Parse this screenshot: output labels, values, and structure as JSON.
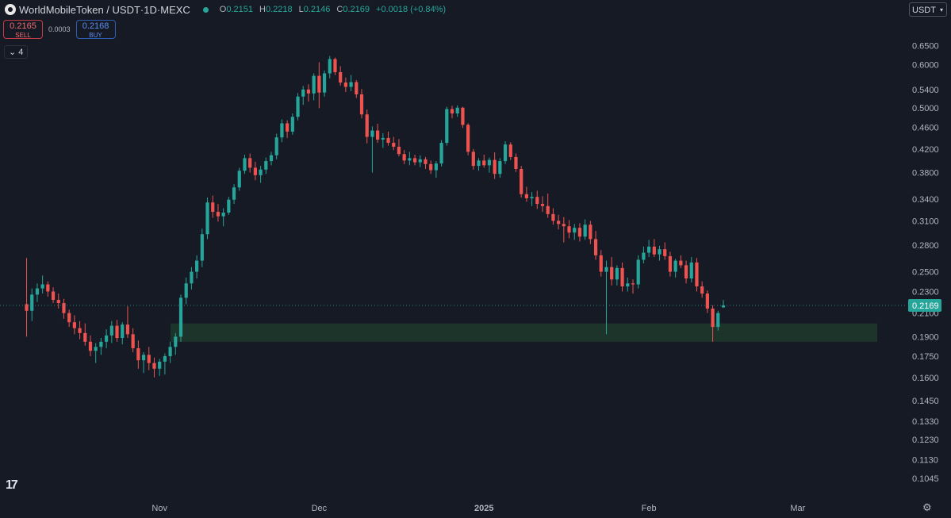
{
  "header": {
    "symbol": "WorldMobileToken / USDT",
    "interval": "1D",
    "exchange": "MEXC",
    "title_sep": " · ",
    "ohlc": {
      "o_label": "O",
      "o": "0.2151",
      "h_label": "H",
      "h": "0.2218",
      "l_label": "L",
      "l": "0.2146",
      "c_label": "C",
      "c": "0.2169",
      "change": "+0.0018 (+0.84%)"
    }
  },
  "trade": {
    "sell_price": "0.2165",
    "sell_label": "SELL",
    "spread": "0.0003",
    "buy_price": "0.2168",
    "buy_label": "BUY"
  },
  "indicator_count": "4",
  "currency_label": "USDT",
  "tv_logo": "17",
  "colors": {
    "up": "#26a69a",
    "down": "#ef5350",
    "zone": "#1e3a2c",
    "background": "#161a25"
  },
  "chart_data": {
    "type": "candlestick",
    "y_scale": "log",
    "y_ticks": [
      "0.6500",
      "0.6000",
      "0.5400",
      "0.5000",
      "0.4600",
      "0.4200",
      "0.3800",
      "0.3400",
      "0.3100",
      "0.2800",
      "0.2500",
      "0.2300",
      "0.2100",
      "0.1900",
      "0.1750",
      "0.1600",
      "0.1450",
      "0.1330",
      "0.1230",
      "0.1130",
      "0.1045"
    ],
    "ylim": [
      0.1,
      0.68
    ],
    "x_ticks": [
      {
        "label": "Nov",
        "date": "2024-11-01"
      },
      {
        "label": "Dec",
        "date": "2024-12-01"
      },
      {
        "label": "2025",
        "date": "2025-01-01"
      },
      {
        "label": "Feb",
        "date": "2025-02-01"
      },
      {
        "label": "Mar",
        "date": "2025-03-01"
      }
    ],
    "xlim": [
      "2024-10-02",
      "2025-03-21"
    ],
    "last_price": "0.2169",
    "support_zone": {
      "low": 0.186,
      "high": 0.201
    },
    "start_date": "2024-10-07",
    "candles": [
      [
        0.218,
        0.265,
        0.19,
        0.212
      ],
      [
        0.212,
        0.233,
        0.203,
        0.227
      ],
      [
        0.227,
        0.238,
        0.22,
        0.233
      ],
      [
        0.233,
        0.246,
        0.228,
        0.237
      ],
      [
        0.237,
        0.24,
        0.225,
        0.23
      ],
      [
        0.23,
        0.234,
        0.219,
        0.222
      ],
      [
        0.222,
        0.228,
        0.214,
        0.219
      ],
      [
        0.219,
        0.223,
        0.205,
        0.21
      ],
      [
        0.21,
        0.213,
        0.198,
        0.202
      ],
      [
        0.202,
        0.208,
        0.192,
        0.197
      ],
      [
        0.197,
        0.203,
        0.188,
        0.193
      ],
      [
        0.193,
        0.201,
        0.183,
        0.186
      ],
      [
        0.186,
        0.191,
        0.175,
        0.179
      ],
      [
        0.179,
        0.185,
        0.17,
        0.182
      ],
      [
        0.182,
        0.189,
        0.176,
        0.186
      ],
      [
        0.186,
        0.196,
        0.181,
        0.191
      ],
      [
        0.191,
        0.203,
        0.185,
        0.199
      ],
      [
        0.199,
        0.204,
        0.186,
        0.189
      ],
      [
        0.189,
        0.202,
        0.184,
        0.2
      ],
      [
        0.2,
        0.216,
        0.189,
        0.192
      ],
      [
        0.192,
        0.197,
        0.178,
        0.181
      ],
      [
        0.181,
        0.187,
        0.166,
        0.172
      ],
      [
        0.172,
        0.178,
        0.163,
        0.176
      ],
      [
        0.176,
        0.182,
        0.165,
        0.17
      ],
      [
        0.17,
        0.174,
        0.16,
        0.166
      ],
      [
        0.166,
        0.173,
        0.161,
        0.171
      ],
      [
        0.171,
        0.177,
        0.162,
        0.175
      ],
      [
        0.175,
        0.186,
        0.17,
        0.182
      ],
      [
        0.182,
        0.193,
        0.176,
        0.19
      ],
      [
        0.19,
        0.227,
        0.186,
        0.224
      ],
      [
        0.224,
        0.244,
        0.218,
        0.238
      ],
      [
        0.238,
        0.255,
        0.232,
        0.25
      ],
      [
        0.25,
        0.268,
        0.243,
        0.262
      ],
      [
        0.262,
        0.3,
        0.255,
        0.293
      ],
      [
        0.293,
        0.342,
        0.287,
        0.335
      ],
      [
        0.335,
        0.345,
        0.314,
        0.322
      ],
      [
        0.322,
        0.333,
        0.309,
        0.316
      ],
      [
        0.316,
        0.327,
        0.303,
        0.321
      ],
      [
        0.321,
        0.343,
        0.318,
        0.339
      ],
      [
        0.339,
        0.362,
        0.333,
        0.357
      ],
      [
        0.357,
        0.388,
        0.352,
        0.383
      ],
      [
        0.383,
        0.41,
        0.378,
        0.404
      ],
      [
        0.404,
        0.412,
        0.38,
        0.388
      ],
      [
        0.388,
        0.398,
        0.368,
        0.376
      ],
      [
        0.376,
        0.391,
        0.364,
        0.385
      ],
      [
        0.385,
        0.405,
        0.378,
        0.399
      ],
      [
        0.399,
        0.415,
        0.392,
        0.409
      ],
      [
        0.409,
        0.448,
        0.402,
        0.441
      ],
      [
        0.441,
        0.476,
        0.432,
        0.468
      ],
      [
        0.468,
        0.474,
        0.44,
        0.452
      ],
      [
        0.452,
        0.488,
        0.446,
        0.481
      ],
      [
        0.481,
        0.532,
        0.474,
        0.524
      ],
      [
        0.524,
        0.548,
        0.506,
        0.54
      ],
      [
        0.54,
        0.552,
        0.513,
        0.531
      ],
      [
        0.531,
        0.578,
        0.516,
        0.572
      ],
      [
        0.572,
        0.606,
        0.499,
        0.533
      ],
      [
        0.533,
        0.585,
        0.524,
        0.578
      ],
      [
        0.578,
        0.622,
        0.566,
        0.614
      ],
      [
        0.614,
        0.618,
        0.574,
        0.581
      ],
      [
        0.581,
        0.596,
        0.549,
        0.556
      ],
      [
        0.556,
        0.568,
        0.534,
        0.546
      ],
      [
        0.546,
        0.574,
        0.536,
        0.557
      ],
      [
        0.557,
        0.562,
        0.521,
        0.529
      ],
      [
        0.529,
        0.541,
        0.478,
        0.486
      ],
      [
        0.486,
        0.496,
        0.43,
        0.442
      ],
      [
        0.442,
        0.462,
        0.38,
        0.454
      ],
      [
        0.454,
        0.467,
        0.431,
        0.437
      ],
      [
        0.437,
        0.449,
        0.422,
        0.44
      ],
      [
        0.44,
        0.452,
        0.426,
        0.431
      ],
      [
        0.431,
        0.442,
        0.418,
        0.424
      ],
      [
        0.424,
        0.438,
        0.407,
        0.411
      ],
      [
        0.411,
        0.418,
        0.394,
        0.4
      ],
      [
        0.4,
        0.415,
        0.392,
        0.404
      ],
      [
        0.404,
        0.41,
        0.392,
        0.397
      ],
      [
        0.397,
        0.409,
        0.389,
        0.402
      ],
      [
        0.402,
        0.406,
        0.386,
        0.394
      ],
      [
        0.394,
        0.4,
        0.378,
        0.384
      ],
      [
        0.384,
        0.399,
        0.372,
        0.395
      ],
      [
        0.395,
        0.436,
        0.39,
        0.431
      ],
      [
        0.431,
        0.502,
        0.426,
        0.497
      ],
      [
        0.497,
        0.504,
        0.478,
        0.488
      ],
      [
        0.488,
        0.505,
        0.481,
        0.5
      ],
      [
        0.5,
        0.502,
        0.459,
        0.465
      ],
      [
        0.465,
        0.468,
        0.409,
        0.415
      ],
      [
        0.415,
        0.42,
        0.385,
        0.391
      ],
      [
        0.391,
        0.404,
        0.383,
        0.4
      ],
      [
        0.4,
        0.41,
        0.388,
        0.392
      ],
      [
        0.392,
        0.405,
        0.38,
        0.401
      ],
      [
        0.401,
        0.414,
        0.37,
        0.378
      ],
      [
        0.378,
        0.404,
        0.372,
        0.399
      ],
      [
        0.399,
        0.434,
        0.394,
        0.428
      ],
      [
        0.428,
        0.432,
        0.401,
        0.406
      ],
      [
        0.406,
        0.412,
        0.381,
        0.386
      ],
      [
        0.386,
        0.391,
        0.342,
        0.347
      ],
      [
        0.347,
        0.358,
        0.336,
        0.341
      ],
      [
        0.341,
        0.35,
        0.33,
        0.343
      ],
      [
        0.343,
        0.352,
        0.326,
        0.333
      ],
      [
        0.333,
        0.344,
        0.322,
        0.33
      ],
      [
        0.33,
        0.348,
        0.314,
        0.319
      ],
      [
        0.319,
        0.327,
        0.305,
        0.31
      ],
      [
        0.31,
        0.318,
        0.299,
        0.306
      ],
      [
        0.306,
        0.315,
        0.283,
        0.303
      ],
      [
        0.303,
        0.311,
        0.288,
        0.295
      ],
      [
        0.295,
        0.306,
        0.286,
        0.301
      ],
      [
        0.301,
        0.307,
        0.284,
        0.29
      ],
      [
        0.29,
        0.312,
        0.286,
        0.305
      ],
      [
        0.305,
        0.31,
        0.281,
        0.287
      ],
      [
        0.287,
        0.297,
        0.263,
        0.268
      ],
      [
        0.268,
        0.274,
        0.245,
        0.25
      ],
      [
        0.25,
        0.262,
        0.192,
        0.255
      ],
      [
        0.255,
        0.266,
        0.236,
        0.242
      ],
      [
        0.242,
        0.257,
        0.236,
        0.254
      ],
      [
        0.254,
        0.26,
        0.23,
        0.235
      ],
      [
        0.235,
        0.244,
        0.23,
        0.238
      ],
      [
        0.238,
        0.242,
        0.228,
        0.237
      ],
      [
        0.237,
        0.268,
        0.233,
        0.263
      ],
      [
        0.263,
        0.278,
        0.259,
        0.271
      ],
      [
        0.271,
        0.286,
        0.266,
        0.278
      ],
      [
        0.278,
        0.287,
        0.266,
        0.269
      ],
      [
        0.269,
        0.279,
        0.262,
        0.275
      ],
      [
        0.275,
        0.283,
        0.263,
        0.267
      ],
      [
        0.267,
        0.272,
        0.245,
        0.25
      ],
      [
        0.25,
        0.264,
        0.244,
        0.262
      ],
      [
        0.262,
        0.268,
        0.254,
        0.257
      ],
      [
        0.257,
        0.262,
        0.238,
        0.243
      ],
      [
        0.243,
        0.266,
        0.239,
        0.26
      ],
      [
        0.26,
        0.265,
        0.23,
        0.235
      ],
      [
        0.235,
        0.24,
        0.224,
        0.228
      ],
      [
        0.228,
        0.231,
        0.21,
        0.214
      ],
      [
        0.214,
        0.217,
        0.186,
        0.198
      ],
      [
        0.198,
        0.212,
        0.195,
        0.21
      ],
      [
        0.2151,
        0.2218,
        0.2146,
        0.2169
      ]
    ]
  }
}
